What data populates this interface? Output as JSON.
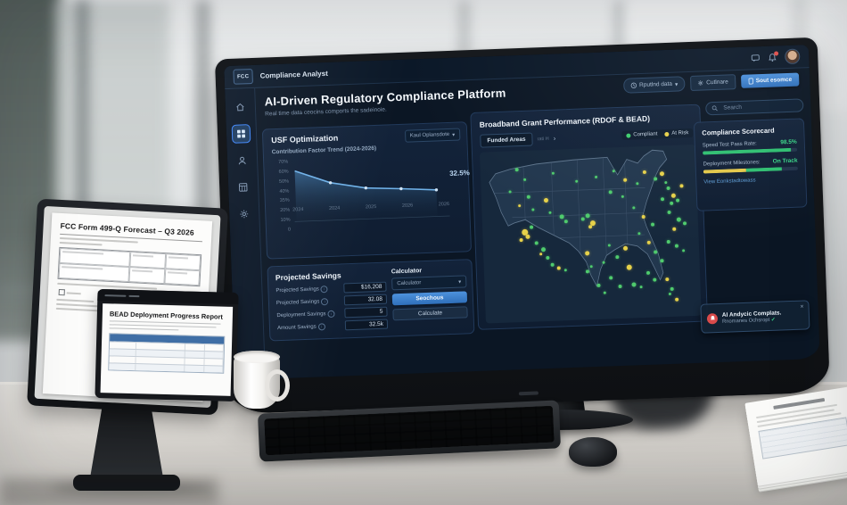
{
  "chart_data": {
    "type": "area",
    "title": "Contribution Factor Trend (2024-2026)",
    "x": [
      "2024",
      "2024",
      "2025",
      "2026",
      "2026"
    ],
    "values": [
      62,
      46,
      38,
      35.5,
      32.5
    ],
    "end_label": "32.5%",
    "y_ticks": [
      "70%",
      "60%",
      "50%",
      "40%",
      "35%",
      "20%",
      "10%",
      "0"
    ],
    "ylim": [
      0,
      70
    ],
    "line_color": "#6fb1e8",
    "fill_top": "#35638f",
    "fill_bottom": "#16283c",
    "legend_position": "none",
    "grid": false
  },
  "monitor": {
    "topbar": {
      "logo": "FCC",
      "app_title": "Compliance Analyst"
    },
    "sidebar": {
      "items": [
        {
          "icon": "home",
          "active": false
        },
        {
          "icon": "dashboard",
          "active": true
        },
        {
          "icon": "users",
          "active": false
        },
        {
          "icon": "reports",
          "active": false
        },
        {
          "icon": "settings",
          "active": false
        }
      ]
    },
    "page": {
      "title": "AI-Driven Regulatory Compliance Platform",
      "subtitle": "Real time data ceocins comports the sadeinoie."
    },
    "toolbar": {
      "data_dropdown": "Rputlnd data",
      "dropdown_chevron": "▾",
      "configure_btn": "Cutlnare",
      "primary_btn": "Sout esomce"
    },
    "usf_panel": {
      "title": "USF Optimization",
      "dropdown": "Kaul Oplansdote",
      "dropdown_chevron": "▾"
    },
    "savings": {
      "title": "Projected Savings",
      "rows": [
        {
          "label": "Projected Savings",
          "value": "$16,208"
        },
        {
          "label": "Projected Savings",
          "value": "32.08"
        },
        {
          "label": "Deployment Savings",
          "value": "5"
        },
        {
          "label": "Amount Savings",
          "value": "32.5k"
        }
      ]
    },
    "calculator": {
      "title": "Calculator",
      "select_value": "Calculator",
      "select_chevron": "▾",
      "primary_btn": "Seochous",
      "secondary_btn": "Calculate"
    },
    "map_panel": {
      "title": "Broadband Grant Performance (RDOF & BEAD)",
      "tab": "Funded Areas",
      "hint": "rati  H",
      "chevron": "›",
      "legend": [
        {
          "label": "Compliant",
          "color": "#3ecf6e"
        },
        {
          "label": "At Risk",
          "color": "#e6d14a"
        }
      ],
      "dots": [
        [
          16,
          10,
          "g",
          4
        ],
        [
          20,
          16,
          "g",
          3
        ],
        [
          13,
          23,
          "g",
          3
        ],
        [
          21,
          26,
          "g",
          4
        ],
        [
          17,
          31,
          "y",
          3
        ],
        [
          23,
          34,
          "g",
          3
        ],
        [
          18,
          46,
          "y",
          7
        ],
        [
          20,
          49,
          "y",
          5
        ],
        [
          17,
          51,
          "y",
          4
        ],
        [
          22,
          44,
          "g",
          4
        ],
        [
          24,
          53,
          "g",
          4
        ],
        [
          27,
          57,
          "g",
          5
        ],
        [
          29,
          62,
          "g",
          4
        ],
        [
          31,
          66,
          "g",
          4
        ],
        [
          26,
          60,
          "y",
          3
        ],
        [
          34,
          68,
          "y",
          4
        ],
        [
          37,
          70,
          "g",
          3
        ],
        [
          29,
          28,
          "y",
          5
        ],
        [
          33,
          13,
          "g",
          3
        ],
        [
          36,
          38,
          "g",
          5
        ],
        [
          38,
          41,
          "g",
          4
        ],
        [
          31,
          36,
          "g",
          3
        ],
        [
          48,
          38,
          "g",
          5
        ],
        [
          50,
          42,
          "y",
          6
        ],
        [
          49,
          45,
          "y",
          4
        ],
        [
          46,
          40,
          "g",
          4
        ],
        [
          44,
          18,
          "g",
          3
        ],
        [
          53,
          16,
          "g",
          3
        ],
        [
          59,
          25,
          "g",
          4
        ],
        [
          65,
          28,
          "g",
          3
        ],
        [
          61,
          13,
          "g",
          3
        ],
        [
          66,
          18,
          "y",
          4
        ],
        [
          72,
          21,
          "g",
          3
        ],
        [
          75,
          14,
          "y",
          4
        ],
        [
          80,
          18,
          "g",
          4
        ],
        [
          83,
          15,
          "y",
          5
        ],
        [
          86,
          24,
          "g",
          4
        ],
        [
          88,
          28,
          "y",
          5
        ],
        [
          90,
          31,
          "g",
          4
        ],
        [
          87,
          33,
          "g",
          4
        ],
        [
          85,
          21,
          "g",
          3
        ],
        [
          92,
          23,
          "y",
          4
        ],
        [
          83,
          30,
          "g",
          4
        ],
        [
          86,
          38,
          "g",
          4
        ],
        [
          90,
          42,
          "g",
          5
        ],
        [
          93,
          45,
          "g",
          4
        ],
        [
          88,
          48,
          "y",
          4
        ],
        [
          85,
          55,
          "g",
          4
        ],
        [
          89,
          58,
          "g",
          4
        ],
        [
          92,
          61,
          "g",
          3
        ],
        [
          70,
          35,
          "g",
          3
        ],
        [
          74,
          40,
          "y",
          4
        ],
        [
          78,
          45,
          "g",
          4
        ],
        [
          72,
          50,
          "g",
          3
        ],
        [
          76,
          55,
          "y",
          4
        ],
        [
          79,
          61,
          "g",
          4
        ],
        [
          82,
          66,
          "g",
          4
        ],
        [
          65,
          58,
          "y",
          5
        ],
        [
          66,
          69,
          "y",
          6
        ],
        [
          58,
          56,
          "g",
          3
        ],
        [
          61,
          63,
          "g",
          4
        ],
        [
          55,
          66,
          "g",
          3
        ],
        [
          47,
          71,
          "g",
          4
        ],
        [
          58,
          75,
          "g",
          4
        ],
        [
          62,
          80,
          "g",
          4
        ],
        [
          68,
          79,
          "g",
          5
        ],
        [
          75,
          73,
          "g",
          4
        ],
        [
          78,
          77,
          "g",
          4
        ],
        [
          72,
          81,
          "g",
          3
        ],
        [
          47,
          60,
          "y",
          5
        ],
        [
          49,
          68,
          "g",
          3
        ],
        [
          52,
          79,
          "g",
          4
        ],
        [
          55,
          84,
          "g",
          3
        ],
        [
          84,
          77,
          "y",
          4
        ],
        [
          86,
          83,
          "g",
          4
        ],
        [
          88,
          89,
          "y",
          4
        ],
        [
          85,
          86,
          "g",
          3
        ]
      ]
    },
    "search": {
      "placeholder": "Search"
    },
    "scorecard": {
      "title": "Compliance Scorecard",
      "metrics": [
        {
          "label": "Speed Test Pass Rate:",
          "value": "98.5%",
          "segments": [
            [
              "#2fbf71",
              93
            ]
          ]
        },
        {
          "label": "Deployment Milestones:",
          "value": "On Track",
          "segments": [
            [
              "#e3c84a",
              45
            ],
            [
              "#2fbf71",
              38
            ]
          ]
        }
      ],
      "link": "View Eonkstadtowass"
    },
    "toast": {
      "title": "AI Andycic Complats.",
      "subtitle": "Rnomanes Ochsropt",
      "check": "✓",
      "close": "×"
    }
  },
  "tablet": {
    "doc_title": "FCC Form 499-Q Forecast – Q3 2026"
  },
  "bead": {
    "doc_title": "BEAD Deployment Progress Report"
  },
  "colors": {
    "accent_blue": "#3b82d0",
    "green": "#2fbf71",
    "yellow": "#e3c84a",
    "screen_bg": "#0b1624"
  }
}
